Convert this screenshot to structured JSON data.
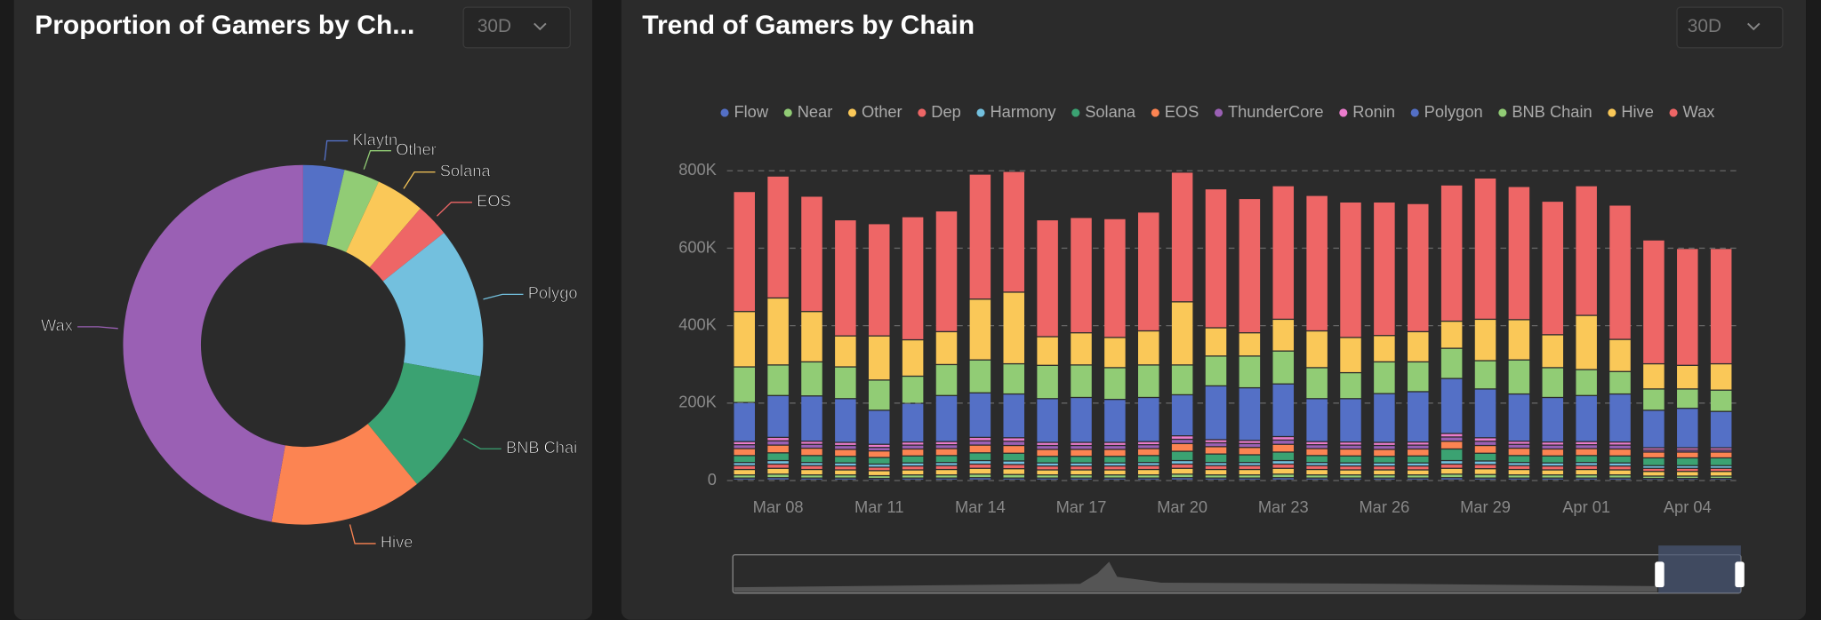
{
  "chart_data": [
    {
      "type": "pie",
      "title": "Proportion of Gamers by Ch...",
      "filter": "30D",
      "categories": [
        "Klaytn",
        "Other",
        "Solana",
        "EOS",
        "Polygo",
        "BNB Chai",
        "Hive",
        "Wax"
      ],
      "values": [
        3.7,
        3.2,
        4.4,
        3,
        13.5,
        11.3,
        13.7,
        47.2
      ],
      "colors": [
        "#5470c6",
        "#91cc75",
        "#fac858",
        "#ee6666",
        "#73c0de",
        "#3ba272",
        "#fc8452",
        "#9a60b4"
      ]
    },
    {
      "type": "stacked-bar",
      "title": "Trend of Gamers by Chain",
      "filter": "30D",
      "categories": [
        null,
        "Mar 08",
        null,
        null,
        "Mar 11",
        null,
        null,
        "Mar 14",
        null,
        null,
        "Mar 17",
        null,
        null,
        "Mar 20",
        null,
        null,
        "Mar 23",
        null,
        null,
        "Mar 26",
        null,
        null,
        "Mar 29",
        null,
        null,
        "Apr 01",
        null,
        null,
        "Apr 04",
        null
      ],
      "ylim": [
        0,
        800000
      ],
      "yticks": [
        0,
        {
          "value": 200000,
          "label": "200K"
        },
        {
          "value": 400000,
          "label": "400K"
        },
        {
          "value": 600000,
          "label": "600K"
        },
        {
          "value": 800000,
          "label": "800K"
        }
      ],
      "grid": true,
      "series": [
        {
          "name": "Flow",
          "color": "#5470c6",
          "values": [
            5000,
            6000,
            5000,
            5000,
            4000,
            5000,
            5000,
            6000,
            5000,
            5000,
            5000,
            5000,
            5000,
            6000,
            5000,
            5000,
            6000,
            5000,
            5000,
            5000,
            5000,
            6000,
            5000,
            5000,
            5000,
            5000,
            5000,
            4000,
            4000,
            4000
          ]
        },
        {
          "name": "Near",
          "color": "#91cc75",
          "values": [
            8000,
            9000,
            8000,
            8000,
            7000,
            8000,
            8000,
            9000,
            9000,
            8000,
            8000,
            8000,
            8000,
            9000,
            8000,
            8000,
            9000,
            8000,
            8000,
            8000,
            8000,
            9000,
            9000,
            8000,
            8000,
            8000,
            8000,
            6000,
            6000,
            6000
          ]
        },
        {
          "name": "Other",
          "color": "#fac858",
          "values": [
            14000,
            15000,
            14000,
            13000,
            13000,
            13000,
            14000,
            15000,
            15000,
            13000,
            13000,
            13000,
            14000,
            15000,
            14000,
            14000,
            15000,
            14000,
            13000,
            13000,
            13000,
            15000,
            15000,
            14000,
            13000,
            14000,
            13000,
            12000,
            12000,
            12000
          ]
        },
        {
          "name": "Dep",
          "color": "#ee6666",
          "values": [
            10000,
            11000,
            10000,
            10000,
            9000,
            10000,
            10000,
            11000,
            11000,
            10000,
            10000,
            10000,
            10000,
            11000,
            10000,
            10000,
            11000,
            10000,
            10000,
            10000,
            10000,
            11000,
            11000,
            10000,
            10000,
            10000,
            10000,
            8000,
            8000,
            8000
          ]
        },
        {
          "name": "Harmony",
          "color": "#73c0de",
          "values": [
            8000,
            9000,
            8000,
            8000,
            8000,
            8000,
            8000,
            9000,
            9000,
            8000,
            8000,
            8000,
            8000,
            9000,
            8000,
            8000,
            9000,
            8000,
            8000,
            8000,
            8000,
            9000,
            9000,
            8000,
            8000,
            8000,
            8000,
            7000,
            7000,
            7000
          ]
        },
        {
          "name": "Solana",
          "color": "#3ba272",
          "values": [
            18000,
            20000,
            18000,
            17000,
            17000,
            18000,
            18000,
            20000,
            20000,
            17000,
            17000,
            17000,
            18000,
            24000,
            22000,
            20000,
            22000,
            18000,
            18000,
            17000,
            18000,
            30000,
            20000,
            18000,
            18000,
            18000,
            18000,
            20000,
            20000,
            20000
          ]
        },
        {
          "name": "EOS",
          "color": "#fc8452",
          "values": [
            18000,
            20000,
            19000,
            18000,
            17000,
            18000,
            18000,
            20000,
            20000,
            18000,
            18000,
            18000,
            18000,
            20000,
            19000,
            19000,
            20000,
            18000,
            18000,
            18000,
            18000,
            20000,
            20000,
            19000,
            18000,
            18000,
            18000,
            15000,
            15000,
            15000
          ]
        },
        {
          "name": "ThunderCore",
          "color": "#9a60b4",
          "values": [
            10000,
            11000,
            10000,
            10000,
            9000,
            10000,
            10000,
            11000,
            11000,
            10000,
            10000,
            10000,
            10000,
            11000,
            10000,
            10000,
            11000,
            10000,
            10000,
            10000,
            10000,
            11000,
            11000,
            10000,
            10000,
            10000,
            10000,
            5000,
            5000,
            5000
          ]
        },
        {
          "name": "Ronin",
          "color": "#ea7ccc",
          "values": [
            8000,
            9000,
            8000,
            8000,
            8000,
            8000,
            8000,
            9000,
            9000,
            8000,
            8000,
            8000,
            8000,
            9000,
            8000,
            8000,
            9000,
            8000,
            8000,
            8000,
            8000,
            9000,
            9000,
            8000,
            8000,
            8000,
            8000,
            6000,
            6000,
            6000
          ]
        },
        {
          "name": "Polygon",
          "color": "#5470c6",
          "values": [
            101000,
            108000,
            117000,
            113000,
            88000,
            100000,
            119000,
            115000,
            113000,
            113000,
            116000,
            111000,
            114000,
            106000,
            139000,
            136000,
            136000,
            111000,
            112000,
            126000,
            130000,
            142000,
            126000,
            122000,
            115000,
            119000,
            124000,
            97000,
            102000,
            94000
          ]
        },
        {
          "name": "BNB Chain",
          "color": "#91cc75",
          "values": [
            92000,
            79000,
            88000,
            82000,
            78000,
            70000,
            80000,
            85000,
            78000,
            86000,
            84000,
            82000,
            84000,
            77000,
            77000,
            82000,
            85000,
            80000,
            67000,
            82000,
            77000,
            78000,
            73000,
            88000,
            77000,
            67000,
            58000,
            55000,
            50000,
            55000
          ]
        },
        {
          "name": "Hive",
          "color": "#fac858",
          "values": [
            143000,
            173000,
            130000,
            80000,
            114000,
            94000,
            85000,
            157000,
            185000,
            74000,
            83000,
            78000,
            88000,
            163000,
            73000,
            60000,
            82000,
            95000,
            91000,
            68000,
            78000,
            70000,
            107000,
            104000,
            85000,
            140000,
            83000,
            65000,
            61000,
            68000
          ]
        },
        {
          "name": "Wax",
          "color": "#ee6666",
          "values": [
            310000,
            315000,
            298000,
            300000,
            290000,
            318000,
            312000,
            323000,
            312000,
            302000,
            298000,
            307000,
            307000,
            335000,
            359000,
            347000,
            345000,
            350000,
            350000,
            345000,
            331000,
            352000,
            365000,
            344000,
            345000,
            335000,
            347000,
            320000,
            302000,
            298000
          ]
        }
      ]
    }
  ]
}
